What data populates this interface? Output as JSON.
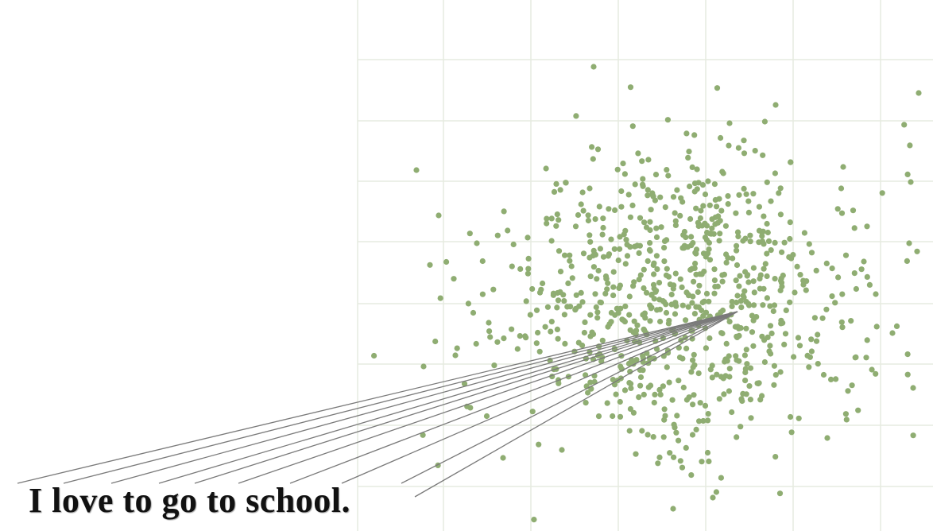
{
  "sentence": "I love to go to school.",
  "colors": {
    "point": "#8fad72",
    "connector": "#7a7a7a",
    "grid": "#e6ebe0"
  }
}
